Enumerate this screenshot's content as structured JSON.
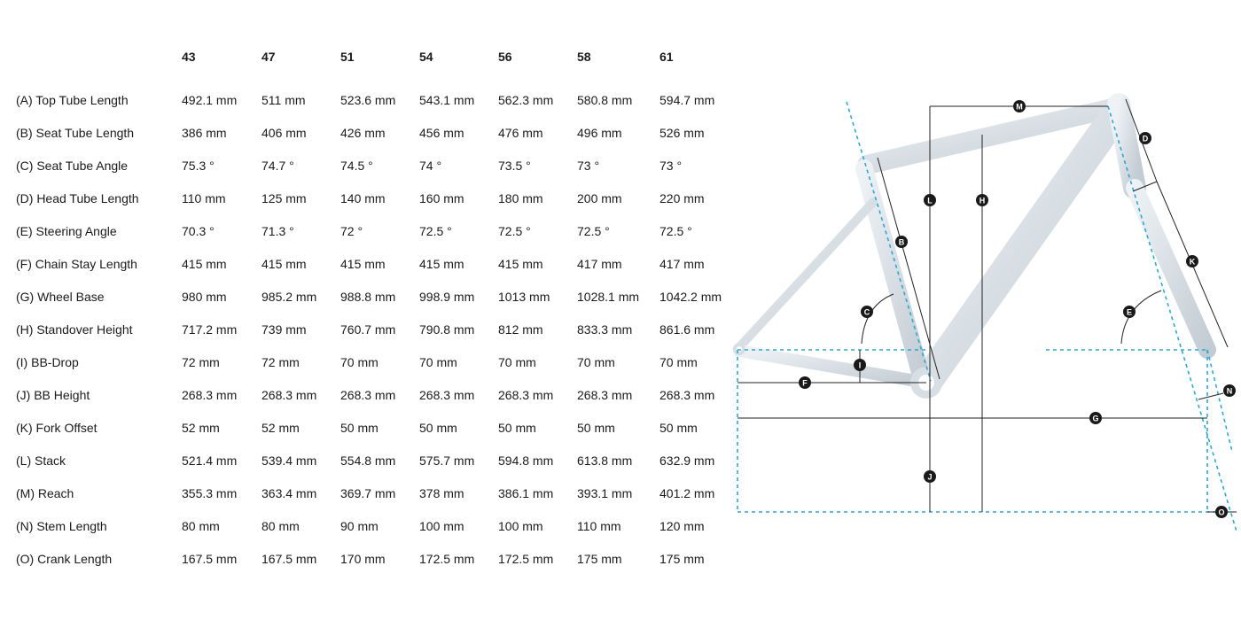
{
  "sizes": [
    "43",
    "47",
    "51",
    "54",
    "56",
    "58",
    "61"
  ],
  "rows": [
    {
      "label": "(A) Top Tube Length",
      "values": [
        "492.1 mm",
        "511 mm",
        "523.6 mm",
        "543.1 mm",
        "562.3 mm",
        "580.8 mm",
        "594.7 mm"
      ]
    },
    {
      "label": "(B) Seat Tube Length",
      "values": [
        "386 mm",
        "406 mm",
        "426 mm",
        "456 mm",
        "476 mm",
        "496 mm",
        "526 mm"
      ]
    },
    {
      "label": "(C) Seat Tube Angle",
      "values": [
        "75.3 °",
        "74.7 °",
        "74.5 °",
        "74 °",
        "73.5 °",
        "73 °",
        "73 °"
      ]
    },
    {
      "label": "(D) Head Tube Length",
      "values": [
        "110 mm",
        "125 mm",
        "140 mm",
        "160 mm",
        "180 mm",
        "200 mm",
        "220 mm"
      ]
    },
    {
      "label": "(E) Steering Angle",
      "values": [
        "70.3 °",
        "71.3 °",
        "72 °",
        "72.5 °",
        "72.5 °",
        "72.5 °",
        "72.5 °"
      ]
    },
    {
      "label": "(F) Chain Stay Length",
      "values": [
        "415 mm",
        "415 mm",
        "415 mm",
        "415 mm",
        "415 mm",
        "417 mm",
        "417 mm"
      ]
    },
    {
      "label": "(G) Wheel Base",
      "values": [
        "980 mm",
        "985.2 mm",
        "988.8 mm",
        "998.9 mm",
        "1013 mm",
        "1028.1 mm",
        "1042.2 mm"
      ]
    },
    {
      "label": "(H) Standover Height",
      "values": [
        "717.2 mm",
        "739 mm",
        "760.7 mm",
        "790.8 mm",
        "812 mm",
        "833.3 mm",
        "861.6 mm"
      ]
    },
    {
      "label": "(I) BB-Drop",
      "values": [
        "72 mm",
        "72 mm",
        "70 mm",
        "70 mm",
        "70 mm",
        "70 mm",
        "70 mm"
      ]
    },
    {
      "label": "(J) BB Height",
      "values": [
        "268.3 mm",
        "268.3 mm",
        "268.3 mm",
        "268.3 mm",
        "268.3 mm",
        "268.3 mm",
        "268.3 mm"
      ]
    },
    {
      "label": "(K) Fork Offset",
      "values": [
        "52 mm",
        "52 mm",
        "50 mm",
        "50 mm",
        "50 mm",
        "50 mm",
        "50 mm"
      ]
    },
    {
      "label": "(L) Stack",
      "values": [
        "521.4 mm",
        "539.4 mm",
        "554.8 mm",
        "575.7 mm",
        "594.8 mm",
        "613.8 mm",
        "632.9 mm"
      ]
    },
    {
      "label": "(M) Reach",
      "values": [
        "355.3 mm",
        "363.4 mm",
        "369.7 mm",
        "378 mm",
        "386.1 mm",
        "393.1 mm",
        "401.2 mm"
      ]
    },
    {
      "label": "(N) Stem Length",
      "values": [
        "80 mm",
        "80 mm",
        "90 mm",
        "100 mm",
        "100 mm",
        "110 mm",
        "120 mm"
      ]
    },
    {
      "label": "(O) Crank Length",
      "values": [
        "167.5 mm",
        "167.5 mm",
        "170 mm",
        "172.5 mm",
        "172.5 mm",
        "175 mm",
        "175 mm"
      ]
    }
  ],
  "diagram": {
    "markers": [
      "B",
      "C",
      "D",
      "E",
      "F",
      "G",
      "H",
      "I",
      "J",
      "K",
      "L",
      "M",
      "N",
      "O"
    ],
    "colors": {
      "frame": "#d3dbe0",
      "guide": "#2aa8d6",
      "marker": "#1a1a1a"
    }
  }
}
